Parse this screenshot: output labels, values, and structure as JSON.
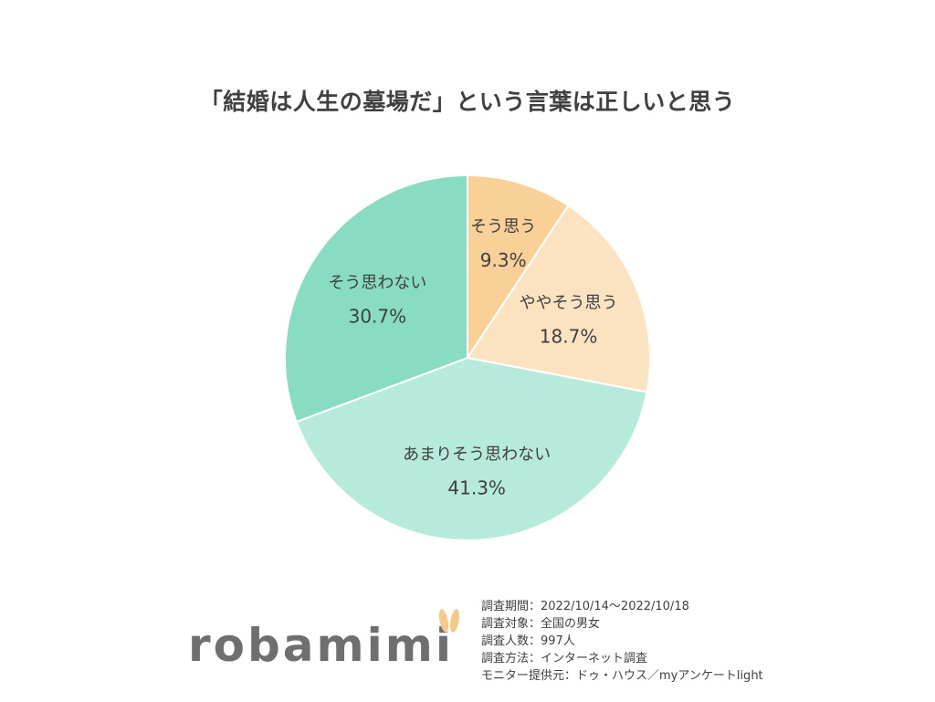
{
  "title": "「結婚は人生の墓場だ」という言葉は正しいと思う",
  "chart_data": {
    "type": "pie",
    "title": "「結婚は人生の墓場だ」という言葉は正しいと思う",
    "start": "12 o'clock",
    "direction": "clockwise",
    "slices": [
      {
        "label": "そう思う",
        "value": 9.3,
        "value_label": "9.3%",
        "color": "#f9d198"
      },
      {
        "label": "ややそう思う",
        "value": 18.7,
        "value_label": "18.7%",
        "color": "#fbe3c2"
      },
      {
        "label": "あまりそう思わない",
        "value": 41.3,
        "value_label": "41.3%",
        "color": "#b6eadb"
      },
      {
        "label": "そう思わない",
        "value": 30.7,
        "value_label": "30.7%",
        "color": "#88dcc2"
      }
    ]
  },
  "logo": {
    "text": "robamimi",
    "ear_color": "#f6c98a"
  },
  "survey": {
    "lines": [
      "調査期間：2022/10/14～2022/10/18",
      "調査対象：全国の男女",
      "調査人数：997人",
      "調査方法：インターネット調査",
      "モニター提供元：ドゥ・ハウス／myアンケートlight"
    ]
  }
}
